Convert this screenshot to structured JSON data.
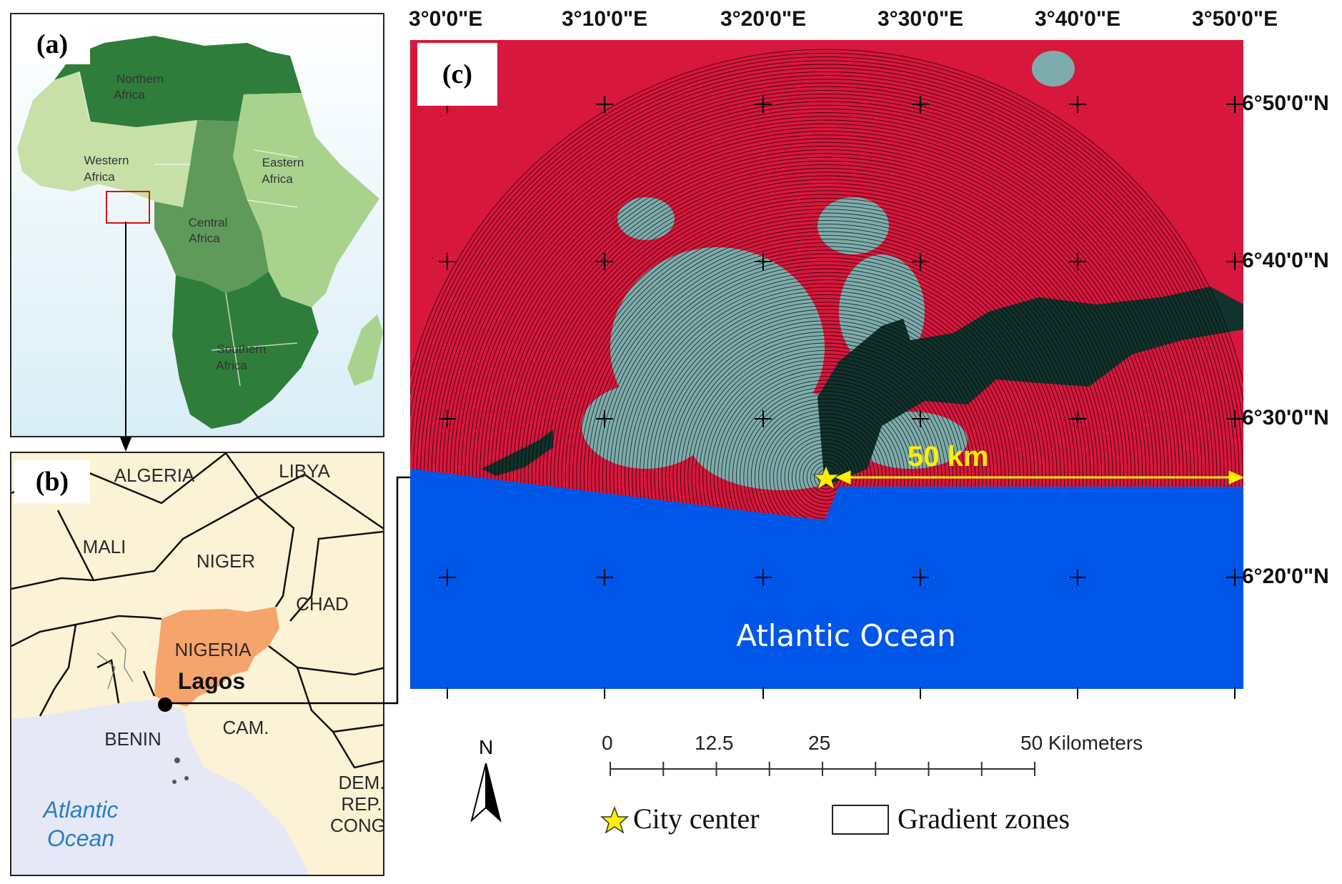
{
  "panels": {
    "a": {
      "label": "(a)",
      "regions": [
        {
          "name": "Northern Africa",
          "line1": "Northern",
          "line2": "Africa",
          "color": "#2f7d3a"
        },
        {
          "name": "Western Africa",
          "line1": "Western",
          "line2": "Africa",
          "color": "#c7e0a8"
        },
        {
          "name": "Eastern Africa",
          "line1": "Eastern",
          "line2": "Africa",
          "color": "#a9d38d"
        },
        {
          "name": "Central Africa",
          "line1": "Central",
          "line2": "Africa",
          "color": "#5f9a5a"
        },
        {
          "name": "Southern Africa",
          "line1": "Southern",
          "line2": "Africa",
          "color": "#2f7d3a"
        }
      ]
    },
    "b": {
      "label": "(b)",
      "countries": [
        "ALGERIA",
        "LIBYA",
        "MALI",
        "NIGER",
        "CHAD",
        "NIGERIA",
        "BENIN",
        "CAM.",
        "DEM.",
        "REP.",
        "CONG"
      ],
      "city": "Lagos",
      "ocean_line1": "Atlantic",
      "ocean_line2": "Ocean",
      "colors": {
        "land": "#fcf2d5",
        "nigeria": "#f5a46b",
        "ocean": "#e6e8f5",
        "ocean_text": "#2a7fc4"
      }
    },
    "c": {
      "label": "(c)",
      "lon_labels": [
        "3°0'0\"E",
        "3°10'0\"E",
        "3°20'0\"E",
        "3°30'0\"E",
        "3°40'0\"E",
        "3°50'0\"E"
      ],
      "lat_labels": [
        "6°50'0\"N",
        "6°40'0\"N",
        "6°30'0\"N",
        "6°20'0\"N"
      ],
      "ocean_label": "Atlantic Ocean",
      "radius_label": "50 km",
      "colors": {
        "land": "#d8173c",
        "urban": "#6fc7c0",
        "lagoon": "#12322c",
        "ocean": "#0057e7",
        "radius": "#ffee00"
      }
    }
  },
  "scale_bar": {
    "labels": [
      "0",
      "12.5",
      "25",
      "50 Kilometers"
    ],
    "values_km": [
      0,
      12.5,
      25,
      50
    ]
  },
  "north_arrow": {
    "label": "N"
  },
  "legend": {
    "city_center": "City center",
    "gradient_zones": "Gradient zones"
  }
}
